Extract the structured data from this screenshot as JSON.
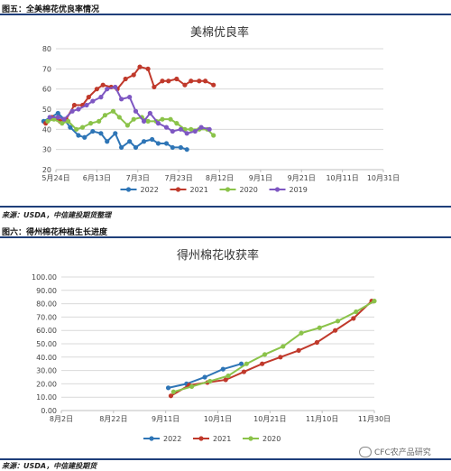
{
  "fig5": {
    "caption": "图五：全美棉花优良率情况",
    "source": "来源：USDA，中信建投期货整理"
  },
  "fig6": {
    "caption": "图六：得州棉花种植生长进度",
    "source": "来源：USDA，中信建投期货"
  },
  "watermark": "CFC农产品研究",
  "chart_data": [
    {
      "type": "line",
      "title": "美棉优良率",
      "x_ticks": [
        "5月24日",
        "6月13日",
        "7月3日",
        "7月23日",
        "8月12日",
        "9月1日",
        "9月21日",
        "10月11日",
        "10月31日"
      ],
      "ylim": [
        20,
        80
      ],
      "y_ticks": [
        20,
        30,
        40,
        50,
        60,
        70,
        80
      ],
      "legend_position": "bottom",
      "series": [
        {
          "name": "2022",
          "color": "#2e75b6",
          "points": [
            [
              -6,
              44
            ],
            [
              1,
              48
            ],
            [
              4,
              45
            ],
            [
              7,
              41
            ],
            [
              11,
              37
            ],
            [
              14,
              36
            ],
            [
              18,
              39
            ],
            [
              22,
              38
            ],
            [
              25,
              34
            ],
            [
              29,
              38
            ],
            [
              32,
              31
            ],
            [
              36,
              34
            ],
            [
              39,
              31
            ],
            [
              43,
              34
            ],
            [
              47,
              35
            ],
            [
              50,
              33
            ],
            [
              54,
              33
            ],
            [
              57,
              31
            ],
            [
              61,
              31
            ],
            [
              64,
              30
            ]
          ]
        },
        {
          "name": "2021",
          "color": "#c0392b",
          "points": [
            [
              -5,
              43
            ],
            [
              -2,
              46
            ],
            [
              2,
              44
            ],
            [
              5,
              45
            ],
            [
              9,
              52
            ],
            [
              13,
              52
            ],
            [
              16,
              56
            ],
            [
              20,
              60
            ],
            [
              23,
              62
            ],
            [
              27,
              61
            ],
            [
              30,
              60
            ],
            [
              34,
              65
            ],
            [
              38,
              67
            ],
            [
              41,
              71
            ],
            [
              45,
              70
            ],
            [
              48,
              61
            ],
            [
              52,
              64
            ],
            [
              55,
              64
            ],
            [
              59,
              65
            ],
            [
              63,
              62
            ],
            [
              66,
              64
            ],
            [
              70,
              64
            ],
            [
              73,
              64
            ],
            [
              77,
              62
            ]
          ]
        },
        {
          "name": "2020",
          "color": "#8bc34a",
          "points": [
            [
              -4,
              44
            ],
            [
              -1,
              45
            ],
            [
              3,
              43
            ],
            [
              6,
              44
            ],
            [
              10,
              40
            ],
            [
              13,
              41
            ],
            [
              17,
              43
            ],
            [
              21,
              44
            ],
            [
              24,
              47
            ],
            [
              28,
              49
            ],
            [
              31,
              46
            ],
            [
              35,
              42
            ],
            [
              38,
              45
            ],
            [
              42,
              46
            ],
            [
              45,
              44
            ],
            [
              49,
              44
            ],
            [
              52,
              45
            ],
            [
              56,
              45
            ],
            [
              59,
              43
            ],
            [
              63,
              40
            ],
            [
              66,
              40
            ],
            [
              70,
              40
            ],
            [
              74,
              40
            ],
            [
              77,
              37
            ]
          ]
        },
        {
          "name": "2019",
          "color": "#7e57c2",
          "points": [
            [
              -3,
              46
            ],
            [
              1,
              46
            ],
            [
              4,
              45
            ],
            [
              8,
              49
            ],
            [
              11,
              50
            ],
            [
              15,
              52
            ],
            [
              18,
              54
            ],
            [
              22,
              56
            ],
            [
              25,
              60
            ],
            [
              29,
              61
            ],
            [
              32,
              55
            ],
            [
              36,
              56
            ],
            [
              39,
              49
            ],
            [
              43,
              44
            ],
            [
              46,
              48
            ],
            [
              50,
              43
            ],
            [
              54,
              41
            ],
            [
              57,
              39
            ],
            [
              61,
              40
            ],
            [
              64,
              38
            ],
            [
              68,
              39
            ],
            [
              71,
              41
            ],
            [
              75,
              40
            ]
          ]
        }
      ]
    },
    {
      "type": "line",
      "title": "得州棉花收获率",
      "x_ticks": [
        "8月2日",
        "8月22日",
        "9月11日",
        "10月1日",
        "10月21日",
        "11月10日",
        "11月30日"
      ],
      "ylim": [
        0,
        100
      ],
      "y_ticks": [
        "0.00",
        "10.00",
        "20.00",
        "30.00",
        "40.00",
        "50.00",
        "60.00",
        "70.00",
        "80.00",
        "90.00",
        "100.00"
      ],
      "legend_position": "bottom",
      "series": [
        {
          "name": "2022",
          "color": "#2e75b6",
          "points": [
            [
              41,
              17
            ],
            [
              48,
              20
            ],
            [
              55,
              25
            ],
            [
              62,
              31
            ],
            [
              69,
              35
            ]
          ]
        },
        {
          "name": "2021",
          "color": "#c0392b",
          "points": [
            [
              42,
              11
            ],
            [
              49,
              19
            ],
            [
              56,
              21
            ],
            [
              63,
              23
            ],
            [
              70,
              29
            ],
            [
              77,
              35
            ],
            [
              84,
              40
            ],
            [
              91,
              45
            ],
            [
              98,
              51
            ],
            [
              105,
              60
            ],
            [
              112,
              69
            ],
            [
              119,
              82
            ]
          ]
        },
        {
          "name": "2020",
          "color": "#8bc34a",
          "points": [
            [
              43,
              14
            ],
            [
              50,
              18
            ],
            [
              57,
              22
            ],
            [
              64,
              26
            ],
            [
              71,
              35
            ],
            [
              78,
              42
            ],
            [
              85,
              48
            ],
            [
              92,
              58
            ],
            [
              99,
              62
            ],
            [
              106,
              67
            ],
            [
              113,
              74
            ],
            [
              120,
              82
            ]
          ]
        }
      ]
    }
  ]
}
